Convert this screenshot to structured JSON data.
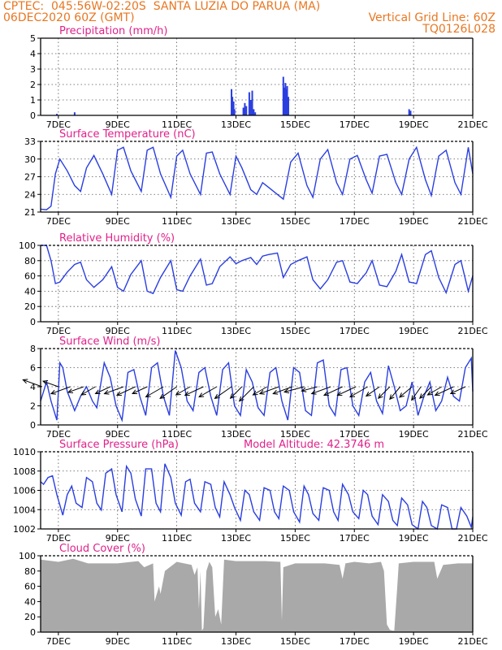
{
  "header": {
    "line1_left": "CPTEC:  045:56W-02:20S  SANTA LUZIA DO PARUA (MA)",
    "line2_left": "06DEC2020 60Z (GMT)",
    "line2_right": "Vertical Grid Line: 60Z",
    "line3_right": "TQ0126L028"
  },
  "colors": {
    "header": "#e87722",
    "title": "#e0218a",
    "series": "#2a3ee0",
    "cloud": "#a9a9a9",
    "axis": "#000000",
    "grid": "#555555"
  },
  "x_ticks": [
    "7DEC",
    "9DEC",
    "11DEC",
    "13DEC",
    "15DEC",
    "17DEC",
    "19DEC",
    "21DEC"
  ],
  "chart_data": [
    {
      "type": "bar",
      "title": "Precipitation (mm/h)",
      "ylim": [
        0,
        5
      ],
      "yticks": [
        "0",
        "1",
        "2",
        "3",
        "4",
        "5"
      ],
      "grid": true,
      "x_range_days": [
        6.4,
        21.0
      ],
      "x": [
        6.95,
        7.55,
        12.85,
        12.88,
        12.92,
        12.95,
        13.25,
        13.3,
        13.35,
        13.45,
        13.5,
        13.55,
        13.6,
        13.65,
        14.6,
        14.63,
        14.67,
        14.7,
        14.73,
        14.77,
        18.85,
        18.9
      ],
      "values": [
        0.1,
        0.2,
        1.7,
        1.2,
        0.9,
        0.4,
        0.5,
        0.8,
        0.6,
        1.5,
        1.0,
        1.6,
        0.4,
        0.2,
        2.5,
        1.8,
        2.1,
        1.7,
        1.9,
        1.2,
        0.4,
        0.3
      ]
    },
    {
      "type": "line",
      "title": "Surface Temperature (nC)",
      "ylim": [
        21,
        33
      ],
      "yticks": [
        "21",
        "24",
        "27",
        "30",
        "33"
      ],
      "grid": true,
      "x_range_days": [
        6.4,
        21.0
      ],
      "x": [
        6.4,
        6.6,
        6.75,
        6.9,
        7.05,
        7.3,
        7.55,
        7.75,
        7.95,
        8.2,
        8.5,
        8.8,
        9.0,
        9.2,
        9.45,
        9.8,
        10.0,
        10.2,
        10.45,
        10.8,
        11.0,
        11.2,
        11.45,
        11.8,
        12.0,
        12.2,
        12.45,
        12.8,
        13.0,
        13.2,
        13.5,
        13.7,
        13.9,
        14.1,
        14.4,
        14.6,
        14.85,
        15.1,
        15.4,
        15.6,
        15.85,
        16.1,
        16.4,
        16.6,
        16.85,
        17.1,
        17.4,
        17.6,
        17.85,
        18.1,
        18.4,
        18.6,
        18.85,
        19.1,
        19.4,
        19.6,
        19.85,
        20.1,
        20.4,
        20.6,
        20.85,
        21.0
      ],
      "values": [
        21.5,
        21.4,
        22.0,
        27.5,
        30.0,
        28.0,
        25.5,
        24.5,
        28.5,
        30.6,
        27.5,
        24.0,
        31.5,
        32.0,
        28.0,
        24.5,
        31.5,
        32.0,
        27.5,
        23.5,
        30.5,
        31.5,
        27.5,
        24.0,
        31.0,
        31.2,
        27.5,
        24.0,
        30.5,
        28.5,
        24.8,
        24.0,
        26.0,
        25.2,
        24.0,
        23.2,
        29.5,
        31.0,
        25.5,
        23.5,
        30.0,
        31.6,
        26.0,
        24.0,
        30.0,
        30.6,
        26.5,
        24.2,
        30.5,
        30.8,
        26.0,
        24.0,
        30.0,
        32.0,
        26.5,
        23.8,
        30.5,
        31.5,
        26.0,
        24.0,
        32.0,
        27.5
      ]
    },
    {
      "type": "line",
      "title": "Relative Humidity (%)",
      "ylim": [
        0,
        100
      ],
      "yticks": [
        "0",
        "20",
        "40",
        "60",
        "80",
        "100"
      ],
      "grid": true,
      "x_range_days": [
        6.4,
        21.0
      ],
      "x": [
        6.4,
        6.6,
        6.75,
        6.9,
        7.05,
        7.3,
        7.55,
        7.75,
        7.95,
        8.2,
        8.5,
        8.8,
        9.0,
        9.2,
        9.45,
        9.8,
        10.0,
        10.2,
        10.45,
        10.8,
        11.0,
        11.2,
        11.45,
        11.8,
        12.0,
        12.2,
        12.45,
        12.8,
        13.0,
        13.2,
        13.5,
        13.7,
        13.9,
        14.1,
        14.4,
        14.6,
        14.85,
        15.1,
        15.4,
        15.6,
        15.85,
        16.1,
        16.4,
        16.6,
        16.85,
        17.1,
        17.4,
        17.6,
        17.85,
        18.1,
        18.4,
        18.6,
        18.85,
        19.1,
        19.4,
        19.6,
        19.85,
        20.1,
        20.4,
        20.6,
        20.85,
        21.0
      ],
      "values": [
        100,
        100,
        80,
        50,
        52,
        65,
        75,
        78,
        55,
        45,
        55,
        72,
        45,
        40,
        62,
        80,
        40,
        37,
        58,
        80,
        42,
        40,
        60,
        82,
        48,
        50,
        72,
        85,
        76,
        80,
        84,
        75,
        86,
        88,
        90,
        58,
        75,
        80,
        85,
        55,
        43,
        55,
        78,
        80,
        52,
        50,
        64,
        80,
        48,
        46,
        66,
        88,
        52,
        50,
        88,
        93,
        58,
        38,
        75,
        80,
        40,
        60
      ]
    },
    {
      "type": "line",
      "title": "Surface Wind (m/s)",
      "ylim": [
        0,
        8
      ],
      "yticks": [
        "0",
        "2",
        "4",
        "6",
        "8"
      ],
      "grid": true,
      "x_range_days": [
        6.4,
        21.0
      ],
      "x": [
        6.4,
        6.6,
        6.75,
        6.95,
        7.05,
        7.15,
        7.3,
        7.55,
        7.75,
        7.95,
        8.15,
        8.3,
        8.55,
        8.75,
        8.95,
        9.15,
        9.35,
        9.55,
        9.75,
        9.95,
        10.15,
        10.35,
        10.55,
        10.75,
        10.95,
        11.15,
        11.35,
        11.55,
        11.75,
        11.95,
        12.15,
        12.35,
        12.55,
        12.75,
        12.95,
        13.15,
        13.35,
        13.55,
        13.75,
        13.95,
        14.15,
        14.35,
        14.55,
        14.75,
        14.95,
        15.15,
        15.35,
        15.55,
        15.75,
        15.95,
        16.15,
        16.35,
        16.55,
        16.75,
        16.95,
        17.15,
        17.35,
        17.55,
        17.75,
        17.95,
        18.15,
        18.35,
        18.55,
        18.75,
        18.95,
        19.15,
        19.35,
        19.55,
        19.75,
        19.95,
        20.15,
        20.35,
        20.55,
        20.75,
        20.95,
        21.0
      ],
      "values": [
        2.5,
        4.5,
        2.5,
        0.5,
        6.5,
        6.0,
        3.5,
        1.5,
        3.0,
        4.0,
        2.5,
        1.8,
        6.5,
        5.0,
        2.0,
        0.5,
        5.5,
        5.8,
        3.0,
        1.0,
        6.0,
        6.5,
        3.0,
        1.0,
        7.8,
        6.0,
        2.5,
        1.5,
        5.5,
        6.0,
        3.0,
        1.0,
        5.8,
        6.5,
        2.0,
        1.0,
        5.8,
        4.5,
        1.8,
        1.0,
        5.5,
        6.0,
        2.5,
        0.5,
        6.0,
        5.5,
        1.5,
        1.0,
        6.5,
        6.8,
        2.0,
        1.0,
        5.8,
        6.0,
        2.0,
        1.0,
        4.5,
        5.5,
        2.5,
        1.2,
        6.2,
        4.0,
        1.5,
        2.0,
        4.5,
        1.0,
        3.0,
        4.5,
        1.5,
        2.5,
        5.0,
        3.0,
        2.5,
        6.0,
        7.0,
        3.5
      ]
    },
    {
      "type": "line",
      "title": "Surface Pressure (hPa)",
      "annotation": "Model Altitude: 42.3746 m",
      "ylim": [
        1002,
        1011
      ],
      "yticks": [
        "1002",
        "1004",
        "1006",
        "1008",
        "1010"
      ],
      "grid": true,
      "x_range_days": [
        6.4,
        21.0
      ],
      "x": [
        6.4,
        6.5,
        6.65,
        6.8,
        6.95,
        7.15,
        7.3,
        7.45,
        7.6,
        7.8,
        7.95,
        8.15,
        8.3,
        8.45,
        8.6,
        8.8,
        8.95,
        9.15,
        9.3,
        9.45,
        9.6,
        9.8,
        9.95,
        10.15,
        10.3,
        10.45,
        10.6,
        10.8,
        10.95,
        11.15,
        11.3,
        11.45,
        11.6,
        11.8,
        11.95,
        12.15,
        12.3,
        12.45,
        12.6,
        12.8,
        12.95,
        13.15,
        13.3,
        13.45,
        13.6,
        13.8,
        13.95,
        14.15,
        14.3,
        14.45,
        14.6,
        14.8,
        14.95,
        15.15,
        15.3,
        15.45,
        15.6,
        15.8,
        15.95,
        16.15,
        16.3,
        16.45,
        16.6,
        16.8,
        16.95,
        17.15,
        17.3,
        17.45,
        17.6,
        17.8,
        17.95,
        18.15,
        18.3,
        18.45,
        18.6,
        18.8,
        18.95,
        19.15,
        19.3,
        19.45,
        19.6,
        19.8,
        19.95,
        20.15,
        20.3,
        20.45,
        20.6,
        20.8,
        20.95,
        21.0
      ],
      "values": [
        1007.5,
        1007.2,
        1008.0,
        1008.2,
        1006.0,
        1003.6,
        1006.0,
        1007.0,
        1005.0,
        1004.5,
        1008.0,
        1007.5,
        1005.0,
        1004.2,
        1008.5,
        1009.0,
        1006.0,
        1004.0,
        1009.3,
        1008.5,
        1005.5,
        1003.5,
        1009.0,
        1009.0,
        1005.0,
        1004.0,
        1009.6,
        1008.0,
        1005.0,
        1003.6,
        1007.5,
        1007.8,
        1005.0,
        1004.0,
        1007.5,
        1007.2,
        1004.5,
        1003.4,
        1007.5,
        1006.0,
        1004.5,
        1003.0,
        1006.5,
        1006.0,
        1004.0,
        1003.0,
        1006.8,
        1006.5,
        1004.0,
        1003.2,
        1007.0,
        1006.5,
        1004.0,
        1002.8,
        1007.0,
        1006.0,
        1003.8,
        1003.0,
        1006.8,
        1006.5,
        1004.0,
        1003.0,
        1007.2,
        1006.0,
        1004.0,
        1003.2,
        1006.5,
        1006.0,
        1003.5,
        1002.5,
        1006.0,
        1005.2,
        1003.0,
        1002.4,
        1005.6,
        1004.8,
        1002.5,
        1002.0,
        1005.2,
        1004.5,
        1002.4,
        1002.0,
        1004.8,
        1004.5,
        1002.0,
        1002.0,
        1004.5,
        1003.5,
        1002.2,
        1003.4
      ]
    },
    {
      "type": "area",
      "title": "Cloud Cover (%)",
      "ylim": [
        0,
        100
      ],
      "yticks": [
        "0",
        "20",
        "40",
        "60",
        "80",
        "100"
      ],
      "grid": false,
      "x_range_days": [
        6.4,
        21.0
      ],
      "x": [
        6.4,
        7.0,
        7.5,
        8.0,
        9.0,
        9.7,
        9.9,
        10.2,
        10.25,
        10.4,
        10.45,
        10.6,
        11.0,
        11.5,
        11.6,
        11.7,
        11.75,
        11.8,
        11.85,
        11.9,
        12.0,
        12.1,
        12.2,
        12.3,
        12.4,
        12.5,
        12.6,
        13.0,
        14.0,
        14.5,
        14.55,
        14.6,
        15.0,
        16.0,
        16.5,
        16.6,
        16.7,
        17.0,
        17.5,
        17.9,
        18.0,
        18.1,
        18.2,
        18.3,
        18.35,
        18.45,
        18.5,
        19.0,
        19.7,
        19.8,
        20.0,
        20.5,
        21.0
      ],
      "values": [
        95,
        92,
        96,
        90,
        90,
        93,
        85,
        90,
        40,
        60,
        50,
        80,
        92,
        88,
        75,
        85,
        30,
        80,
        2,
        5,
        80,
        92,
        85,
        20,
        30,
        10,
        95,
        93,
        93,
        92,
        15,
        85,
        90,
        90,
        88,
        70,
        90,
        92,
        90,
        92,
        80,
        10,
        3,
        2,
        2,
        60,
        90,
        92,
        92,
        70,
        88,
        90,
        90
      ]
    }
  ],
  "wind_arrows": {
    "x": [
      6.45,
      7.0,
      7.4,
      7.85,
      8.25,
      8.75,
      9.2,
      9.6,
      10.0,
      10.55,
      11.0,
      11.45,
      11.9,
      12.35,
      12.85,
      13.2,
      13.6,
      14.05,
      14.45,
      14.9,
      15.3,
      15.75,
      16.2,
      16.6,
      17.05,
      17.45,
      17.85,
      18.2,
      18.55,
      18.95,
      19.25,
      19.6,
      19.95,
      20.35,
      20.75
    ],
    "dir_deg": [
      160,
      160,
      200,
      200,
      210,
      205,
      200,
      205,
      205,
      210,
      215,
      210,
      205,
      210,
      215,
      225,
      225,
      210,
      200,
      200,
      195,
      195,
      200,
      205,
      205,
      210,
      215,
      225,
      230,
      220,
      235,
      225,
      210,
      205,
      205
    ],
    "length": [
      5,
      4,
      5,
      4,
      4,
      4,
      5,
      5,
      4,
      5,
      5,
      4,
      5,
      5,
      5,
      4,
      5,
      4,
      5,
      5,
      5,
      4,
      5,
      5,
      5,
      5,
      4,
      4,
      4,
      4,
      4,
      4,
      4,
      5,
      4
    ]
  }
}
